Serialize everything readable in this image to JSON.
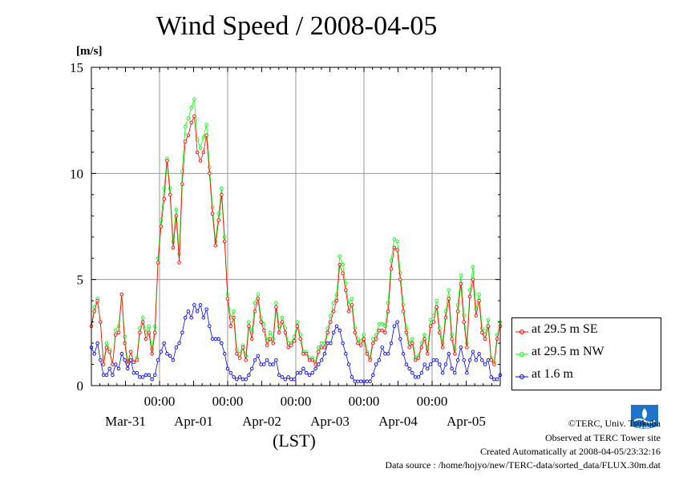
{
  "title": "Wind Speed / 2008-04-05",
  "unit_label": "[m/s]",
  "x_unit_label": "(LST)",
  "colors": {
    "se": "#ff0000",
    "nw": "#00ff00",
    "low": "#0000ff"
  },
  "legend": [
    {
      "key": "se",
      "label": "at 29.5 m SE"
    },
    {
      "key": "nw",
      "label": "at 29.5 m NW"
    },
    {
      "key": "low",
      "label": "at 1.6 m"
    }
  ],
  "credits": {
    "copyright": "©TERC, Univ. Tsukuba",
    "site": "Observed at TERC Tower site",
    "created": "Created Automatically at 2008-04-05/23:32:16",
    "source": "Data source : /home/hojyo/new/TERC-data/sorted_data/FLUX.30m.dat"
  },
  "logo_text": "TERC",
  "chart_data": {
    "type": "line",
    "title": "Wind Speed / 2008-04-05",
    "ylabel": "[m/s]",
    "xlabel": "(LST)",
    "ylim": [
      0,
      15
    ],
    "yticks": [
      0,
      5,
      10,
      15
    ],
    "xlim_days": [
      -1,
      5
    ],
    "x_time_ticks": [
      "00:00",
      "00:00",
      "00:00",
      "00:00",
      "00:00"
    ],
    "x_date_labels": [
      "Mar-31",
      "Apr-01",
      "Apr-02",
      "Apr-03",
      "Apr-04",
      "Apr-05"
    ],
    "grid": true,
    "legend_position": "right",
    "series": [
      {
        "key": "se",
        "name": "at 29.5 m SE",
        "values": [
          2.8,
          3.5,
          4.0,
          3.0,
          1.0,
          1.8,
          1.6,
          1.0,
          2.4,
          2.5,
          4.3,
          2.0,
          1.0,
          1.6,
          1.1,
          1.2,
          2.5,
          3.0,
          2.2,
          2.5,
          1.5,
          2.5,
          5.8,
          7.5,
          8.8,
          10.6,
          9.0,
          6.5,
          8.0,
          5.8,
          9.5,
          11.5,
          11.8,
          12.4,
          12.7,
          11.0,
          10.6,
          11.0,
          11.8,
          10.0,
          8.1,
          6.6,
          7.8,
          9.0,
          6.8,
          4.1,
          2.8,
          3.2,
          1.5,
          1.3,
          1.8,
          1.2,
          2.8,
          2.2,
          3.5,
          4.1,
          3.0,
          2.6,
          1.9,
          2.2,
          2.0,
          3.7,
          2.5,
          3.0,
          2.5,
          1.8,
          1.9,
          2.1,
          2.8,
          2.2,
          1.5,
          1.5,
          1.2,
          1.2,
          1.0,
          1.6,
          1.8,
          1.8,
          2.5,
          3.0,
          3.5,
          4.0,
          5.7,
          5.3,
          4.5,
          3.5,
          3.8,
          2.5,
          2.0,
          1.9,
          2.2,
          1.5,
          1.2,
          2.0,
          2.2,
          2.6,
          2.6,
          2.5,
          3.5,
          5.5,
          6.5,
          6.4,
          5.0,
          3.5,
          2.5,
          1.8,
          2.0,
          1.2,
          1.3,
          1.8,
          2.2,
          1.5,
          2.8,
          3.0,
          3.7,
          2.5,
          1.8,
          3.2,
          4.1,
          2.2,
          1.5,
          3.5,
          4.8,
          3.0,
          1.8,
          4.2,
          5.0,
          3.3,
          4.0,
          2.5,
          2.2,
          2.8,
          1.2,
          1.0,
          2.2,
          2.8
        ],
        "nw_offset": [
          0,
          0.2,
          0.1,
          0,
          0,
          0.2,
          0.1,
          0,
          0.2,
          0.3,
          0,
          0.3,
          0.1,
          0,
          0,
          0.1,
          0.2,
          0.2,
          0.3,
          0.3,
          0.2,
          0.3,
          0.2,
          0.3,
          0.5,
          0.1,
          0.3,
          0.3,
          0.3,
          0.4,
          0.6,
          0.7,
          0.8,
          0.7,
          0.8,
          0.6,
          0.6,
          0.7,
          0.5,
          0.3,
          0.3,
          0.2,
          0.3,
          0.3,
          0.2,
          0.2,
          0.4,
          0.3,
          0.2,
          0.2,
          0.1,
          0.2,
          0.2,
          0.3,
          0.4,
          0.2,
          0.2,
          0.3,
          0.2,
          0.3,
          0.2,
          0.2,
          0.3,
          0.2,
          0.2,
          0.2,
          0.1,
          0.2,
          0.2,
          0.2,
          0.1,
          0.1,
          0.1,
          0.1,
          0.1,
          0.2,
          0.2,
          0.2,
          0.2,
          0.3,
          0.4,
          0.3,
          0.4,
          0.4,
          0.3,
          0.3,
          0.3,
          0.2,
          0.2,
          0.2,
          0.2,
          0.1,
          0.1,
          0.2,
          0.2,
          0.3,
          0.3,
          0.3,
          0.4,
          0.4,
          0.4,
          0.4,
          0.3,
          0.3,
          0.2,
          0.2,
          0.2,
          0.1,
          0.1,
          0.2,
          0.2,
          0.2,
          0.3,
          0.3,
          0.3,
          0.2,
          0.2,
          0.3,
          0.4,
          0.2,
          0.2,
          0.3,
          0.4,
          0.3,
          0.2,
          0.3,
          0.6,
          0.3,
          0.3,
          0.2,
          0.2,
          0.3,
          0.1,
          0.1,
          0.2,
          0.2
        ]
      },
      {
        "key": "nw",
        "name": "at 29.5 m NW"
      },
      {
        "key": "low",
        "name": "at 1.6 m",
        "values": [
          1.8,
          1.5,
          2.0,
          1.2,
          0.5,
          0.5,
          0.8,
          0.5,
          1.0,
          0.8,
          1.5,
          1.2,
          0.8,
          1.2,
          0.6,
          0.6,
          0.4,
          0.4,
          0.5,
          0.5,
          0.3,
          0.5,
          1.2,
          1.6,
          2.0,
          1.5,
          1.4,
          1.2,
          1.8,
          2.0,
          2.5,
          3.2,
          3.5,
          3.2,
          3.8,
          3.5,
          3.8,
          3.2,
          3.6,
          2.8,
          2.2,
          2.2,
          2.2,
          2.0,
          1.5,
          0.8,
          0.6,
          0.4,
          0.3,
          0.4,
          0.3,
          0.3,
          0.5,
          0.8,
          1.2,
          1.4,
          1.0,
          1.0,
          1.2,
          1.0,
          1.0,
          1.2,
          0.5,
          0.4,
          0.3,
          0.4,
          0.3,
          0.3,
          0.6,
          0.6,
          0.8,
          0.6,
          0.5,
          0.6,
          0.8,
          1.0,
          1.2,
          1.5,
          2.0,
          2.0,
          2.5,
          2.8,
          2.6,
          2.0,
          1.5,
          1.0,
          0.4,
          0.2,
          0.2,
          0.2,
          0.2,
          0.2,
          0.2,
          0.5,
          1.0,
          1.2,
          1.8,
          1.5,
          1.5,
          2.0,
          2.8,
          3.0,
          2.2,
          1.5,
          1.0,
          0.8,
          0.6,
          0.4,
          0.4,
          0.6,
          1.0,
          0.8,
          1.0,
          1.2,
          1.2,
          1.0,
          0.6,
          1.0,
          1.5,
          0.8,
          0.6,
          1.2,
          1.8,
          1.2,
          0.6,
          1.2,
          1.6,
          1.2,
          1.5,
          1.2,
          1.0,
          1.2,
          0.4,
          0.3,
          0.3,
          0.5
        ]
      }
    ]
  }
}
